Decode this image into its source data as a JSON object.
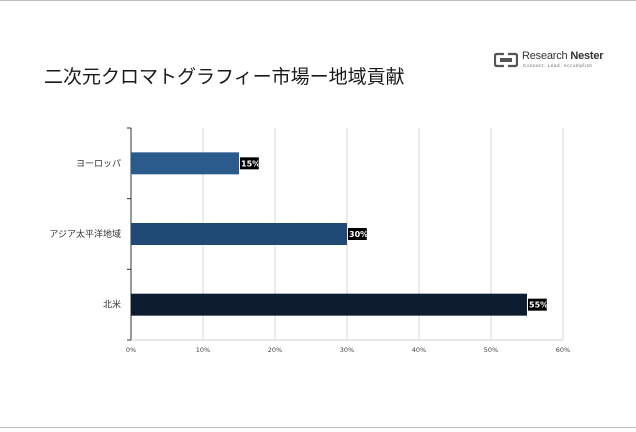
{
  "title": "二次元クロマトグラフィー市場ー地域貢献",
  "logo": {
    "brand_a": "Research ",
    "brand_b": "Nester",
    "tagline": "Connect. Lead. Accomplish"
  },
  "colors": {
    "europe": "#2a5b8c",
    "apac": "#1f4a76",
    "north_america": "#0e1c30",
    "label_bg": "#000000",
    "grid": "#d9d9d9"
  },
  "chart_data": {
    "type": "bar",
    "orientation": "horizontal",
    "categories": [
      "ヨーロッパ",
      "アジア太平洋地域",
      "北米"
    ],
    "values": [
      15,
      30,
      55
    ],
    "data_labels": [
      "15%",
      "30%",
      "55%"
    ],
    "xlim": [
      0,
      60
    ],
    "x_ticks": [
      "0%",
      "10%",
      "20%",
      "30%",
      "40%",
      "50%",
      "60%"
    ],
    "grid": true,
    "legend": "none"
  }
}
